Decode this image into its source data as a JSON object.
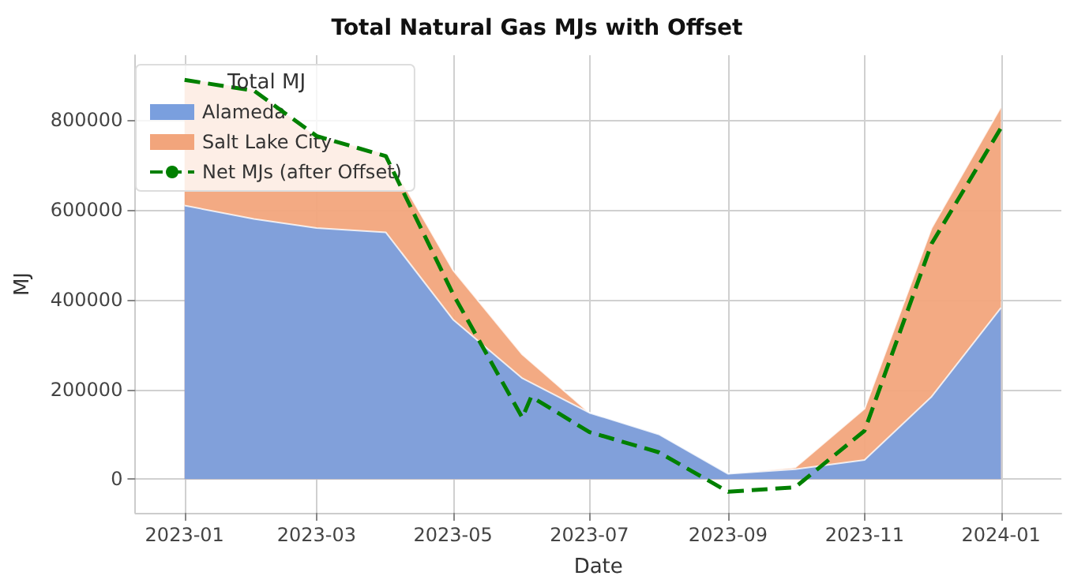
{
  "chart_data": {
    "type": "area",
    "title": "Total Natural Gas MJs with Offset",
    "xlabel": "Date",
    "ylabel": "MJ",
    "legend_title": "Total MJ",
    "x": [
      "2023-01",
      "2023-02",
      "2023-03",
      "2023-04",
      "2023-05",
      "2023-06",
      "2023-07",
      "2023-08",
      "2023-09",
      "2023-10",
      "2023-11",
      "2023-12",
      "2024-01"
    ],
    "stacked": true,
    "series": [
      {
        "name": "Alameda",
        "type": "area",
        "color": "#7a9fde",
        "values": [
          610000,
          580000,
          560000,
          550000,
          356000,
          225000,
          148000,
          100000,
          12000,
          22000,
          43000,
          184000,
          382000
        ]
      },
      {
        "name": "Salt Lake City",
        "type": "area",
        "color": "#f2a57c",
        "values": [
          285000,
          290000,
          205000,
          176000,
          110000,
          53000,
          0,
          0,
          0,
          4000,
          114000,
          376000,
          448000
        ]
      },
      {
        "name": "Net MJs (after Offset)",
        "type": "line",
        "color": "#008000",
        "line_style": "dashed",
        "x": [
          "2023-01",
          "2023-02",
          "2023-03",
          "2023-04",
          "2023-05",
          "2023-06",
          "2023-06-05",
          "2023-07",
          "2023-08",
          "2023-09",
          "2023-10",
          "2023-11",
          "2023-12",
          "2024-01"
        ],
        "values": [
          890000,
          866000,
          765000,
          720000,
          413000,
          137000,
          184000,
          105000,
          60000,
          -28000,
          -18000,
          108000,
          525000,
          783000
        ]
      }
    ],
    "xlim": [
      "2022-12-10",
      "2024-01-28"
    ],
    "ylim": [
      -75000,
      945000
    ],
    "xticks": [
      "2023-01",
      "2023-03",
      "2023-05",
      "2023-07",
      "2023-09",
      "2023-11",
      "2024-01"
    ],
    "yticks": [
      0,
      200000,
      400000,
      600000,
      800000
    ],
    "grid": true,
    "legend": "top left",
    "marker": "none"
  }
}
